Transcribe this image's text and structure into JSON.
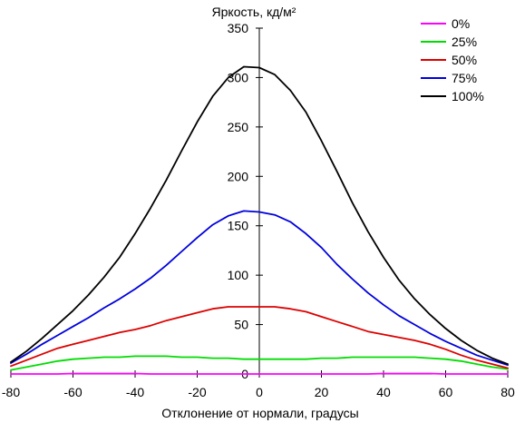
{
  "chart_data": {
    "type": "line",
    "title": "",
    "xlabel": "Отклонение от нормали, градусы",
    "ylabel": "Яркость, кд/м²",
    "xlim": [
      -80,
      80
    ],
    "ylim": [
      0,
      350
    ],
    "xticks": [
      "-80",
      "-60",
      "-40",
      "-20",
      "0",
      "20",
      "40",
      "60",
      "80"
    ],
    "yticks": [
      "0",
      "50",
      "100",
      "150",
      "200",
      "250",
      "300",
      "350"
    ],
    "grid": false,
    "legend_position": "top-right",
    "x": [
      -80,
      -75,
      -70,
      -65,
      -60,
      -55,
      -50,
      -45,
      -40,
      -35,
      -30,
      -25,
      -20,
      -15,
      -10,
      -5,
      0,
      5,
      10,
      15,
      20,
      25,
      30,
      35,
      40,
      45,
      50,
      55,
      60,
      65,
      70,
      75,
      80
    ],
    "series": [
      {
        "name": "0%",
        "color": "#ff00ff",
        "values": [
          0,
          0,
          0,
          0,
          0.5,
          0.5,
          0.5,
          0.5,
          0.5,
          0,
          0,
          0,
          0,
          0,
          0,
          0,
          0,
          0,
          0,
          0,
          0,
          0,
          0,
          0,
          0.5,
          0.5,
          0.5,
          0.5,
          0,
          0,
          0,
          0,
          0
        ]
      },
      {
        "name": "25%",
        "color": "#00dd00",
        "values": [
          4,
          7,
          10,
          13,
          15,
          16,
          17,
          17,
          18,
          18,
          18,
          17,
          17,
          16,
          16,
          15,
          15,
          15,
          15,
          15,
          16,
          16,
          17,
          17,
          17,
          17,
          17,
          16,
          15,
          13,
          10,
          7,
          5
        ]
      },
      {
        "name": "50%",
        "color": "#dd0000",
        "values": [
          8,
          14,
          20,
          26,
          30,
          34,
          38,
          42,
          45,
          49,
          54,
          58,
          62,
          66,
          68,
          68,
          68,
          68,
          66,
          63,
          58,
          53,
          48,
          43,
          40,
          37,
          34,
          30,
          25,
          19,
          14,
          10,
          6
        ]
      },
      {
        "name": "75%",
        "color": "#0000dd",
        "values": [
          11,
          20,
          30,
          39,
          48,
          57,
          67,
          76,
          86,
          97,
          110,
          124,
          138,
          151,
          160,
          165,
          164,
          161,
          154,
          142,
          128,
          111,
          96,
          82,
          70,
          59,
          50,
          41,
          33,
          26,
          19,
          14,
          9
        ]
      },
      {
        "name": "100%",
        "color": "#000000",
        "values": [
          12,
          23,
          36,
          50,
          64,
          80,
          98,
          118,
          142,
          168,
          196,
          226,
          255,
          281,
          300,
          311,
          310,
          303,
          287,
          265,
          236,
          205,
          173,
          144,
          118,
          95,
          76,
          60,
          46,
          34,
          24,
          16,
          10
        ]
      }
    ]
  }
}
